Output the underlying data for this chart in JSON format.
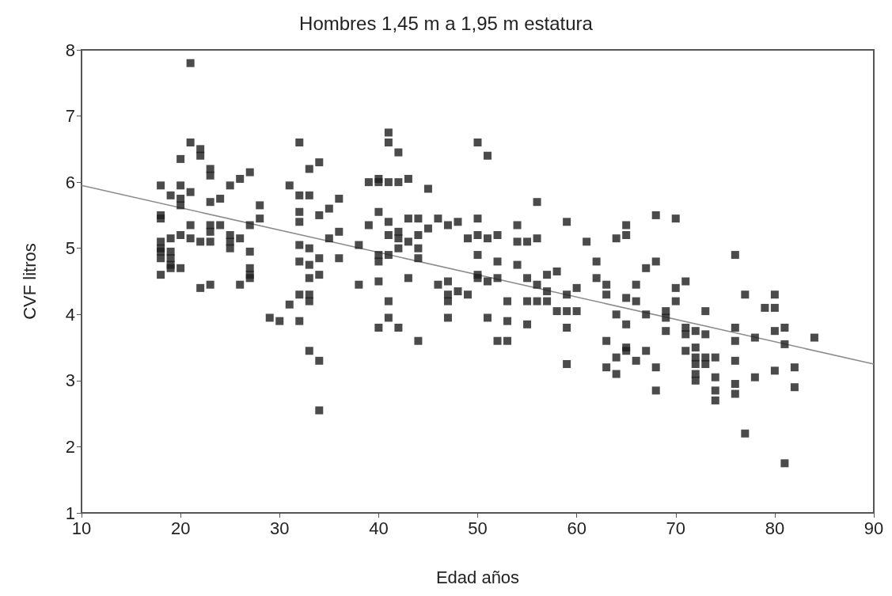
{
  "chart_data": {
    "type": "scatter",
    "title": "Hombres 1,45 m a 1,95 m estatura",
    "xlabel": "Edad años",
    "ylabel": "CVF litros",
    "xlim": [
      10,
      90
    ],
    "xticks": [
      10,
      20,
      30,
      40,
      50,
      60,
      70,
      80,
      90
    ],
    "ylim": [
      1,
      8
    ],
    "yticks": [
      1,
      2,
      3,
      4,
      5,
      6,
      7,
      8
    ],
    "grid": false,
    "marker": "square",
    "series": [
      {
        "color": "#1e1e1e",
        "x": [
          18,
          18,
          18,
          18,
          18,
          18,
          18,
          18,
          19,
          19,
          19,
          19,
          19,
          19,
          20,
          20,
          20,
          20,
          20,
          20,
          21,
          21,
          21,
          21,
          21,
          22,
          22,
          22,
          22,
          23,
          23,
          23,
          23,
          23,
          23,
          23,
          24,
          24,
          25,
          25,
          25,
          25,
          26,
          26,
          26,
          27,
          27,
          27,
          27,
          27,
          27,
          28,
          28,
          29,
          30,
          31,
          31,
          32,
          32,
          32,
          32,
          32,
          32,
          32,
          32,
          33,
          33,
          33,
          33,
          33,
          33,
          33,
          33,
          34,
          34,
          34,
          34,
          34,
          34,
          35,
          35,
          36,
          36,
          36,
          38,
          38,
          39,
          39,
          40,
          40,
          40,
          40,
          40,
          40,
          40,
          41,
          41,
          41,
          41,
          41,
          41,
          41,
          41,
          42,
          42,
          42,
          42,
          42,
          42,
          43,
          43,
          43,
          43,
          44,
          44,
          44,
          44,
          44,
          45,
          45,
          46,
          46,
          47,
          47,
          47,
          47,
          47,
          48,
          48,
          49,
          49,
          50,
          50,
          50,
          50,
          50,
          50,
          51,
          51,
          51,
          51,
          52,
          52,
          52,
          52,
          53,
          53,
          53,
          54,
          54,
          54,
          55,
          55,
          55,
          55,
          56,
          56,
          56,
          56,
          57,
          57,
          57,
          58,
          58,
          59,
          59,
          59,
          59,
          59,
          60,
          60,
          61,
          62,
          62,
          63,
          63,
          63,
          63,
          64,
          64,
          64,
          64,
          65,
          65,
          65,
          65,
          65,
          65,
          66,
          66,
          66,
          67,
          67,
          67,
          68,
          68,
          68,
          68,
          69,
          69,
          69,
          70,
          70,
          70,
          71,
          71,
          71,
          71,
          72,
          72,
          72,
          72,
          72,
          72,
          73,
          73,
          73,
          73,
          74,
          74,
          74,
          74,
          76,
          76,
          76,
          76,
          76,
          76,
          77,
          77,
          78,
          78,
          79,
          80,
          80,
          80,
          80,
          81,
          81,
          81,
          82,
          82,
          84
        ],
        "values": [
          5.95,
          5.5,
          5.45,
          5.1,
          5.0,
          4.95,
          4.85,
          4.6,
          5.8,
          5.15,
          4.95,
          4.85,
          4.75,
          4.7,
          6.35,
          5.95,
          5.75,
          5.65,
          5.2,
          4.7,
          7.8,
          6.6,
          5.85,
          5.35,
          5.15,
          6.5,
          6.4,
          5.1,
          4.4,
          6.2,
          6.1,
          5.7,
          5.35,
          5.25,
          5.1,
          4.45,
          5.75,
          5.35,
          5.95,
          5.2,
          5.1,
          5.0,
          6.05,
          5.15,
          4.45,
          6.15,
          5.35,
          4.95,
          4.7,
          4.6,
          4.55,
          5.65,
          5.45,
          3.95,
          3.9,
          5.95,
          4.15,
          6.6,
          5.8,
          5.55,
          5.4,
          5.05,
          4.8,
          4.3,
          3.9,
          6.2,
          5.8,
          5.0,
          4.75,
          4.55,
          4.3,
          4.2,
          3.45,
          6.3,
          5.5,
          4.85,
          4.6,
          3.3,
          2.55,
          5.6,
          5.15,
          5.75,
          5.25,
          4.85,
          5.05,
          4.45,
          6.0,
          5.35,
          6.05,
          6.0,
          5.55,
          4.9,
          4.8,
          4.5,
          3.8,
          6.75,
          6.6,
          6.0,
          5.4,
          5.2,
          4.9,
          4.2,
          3.95,
          6.45,
          6.0,
          5.25,
          5.15,
          5.0,
          3.8,
          6.05,
          5.45,
          5.1,
          4.55,
          5.45,
          5.2,
          5.0,
          4.85,
          3.6,
          5.9,
          5.3,
          5.45,
          4.45,
          5.35,
          4.5,
          4.3,
          4.2,
          3.95,
          5.4,
          4.35,
          5.15,
          4.3,
          6.6,
          5.45,
          5.2,
          4.9,
          4.6,
          4.55,
          6.4,
          5.15,
          4.5,
          3.95,
          5.2,
          4.8,
          4.55,
          3.6,
          4.2,
          3.9,
          3.6,
          5.35,
          5.1,
          4.75,
          5.1,
          4.55,
          4.2,
          3.85,
          5.7,
          5.15,
          4.45,
          4.2,
          4.6,
          4.35,
          4.2,
          4.65,
          4.05,
          5.4,
          4.3,
          4.05,
          3.8,
          3.25,
          4.4,
          4.05,
          5.1,
          4.8,
          4.55,
          4.45,
          4.3,
          3.6,
          3.2,
          5.15,
          4.0,
          3.35,
          3.1,
          5.35,
          5.2,
          4.25,
          3.85,
          3.5,
          3.45,
          4.45,
          4.2,
          3.3,
          4.7,
          4.0,
          3.45,
          5.5,
          4.8,
          3.2,
          2.85,
          4.05,
          3.95,
          3.75,
          5.45,
          4.4,
          4.2,
          4.5,
          3.8,
          3.7,
          3.45,
          3.75,
          3.5,
          3.35,
          3.25,
          3.1,
          3.0,
          4.05,
          3.7,
          3.35,
          3.25,
          3.35,
          3.05,
          2.85,
          2.7,
          4.9,
          3.8,
          3.6,
          3.3,
          2.95,
          2.8,
          4.3,
          2.2,
          3.65,
          3.05,
          4.1,
          4.3,
          4.1,
          3.75,
          3.15,
          3.8,
          3.55,
          1.75,
          3.2,
          2.9,
          3.65
        ]
      },
      {
        "type": "line",
        "color": "#8c8c8c",
        "marker": "none",
        "x": [
          10,
          90
        ],
        "values": [
          5.95,
          3.25
        ]
      }
    ]
  }
}
